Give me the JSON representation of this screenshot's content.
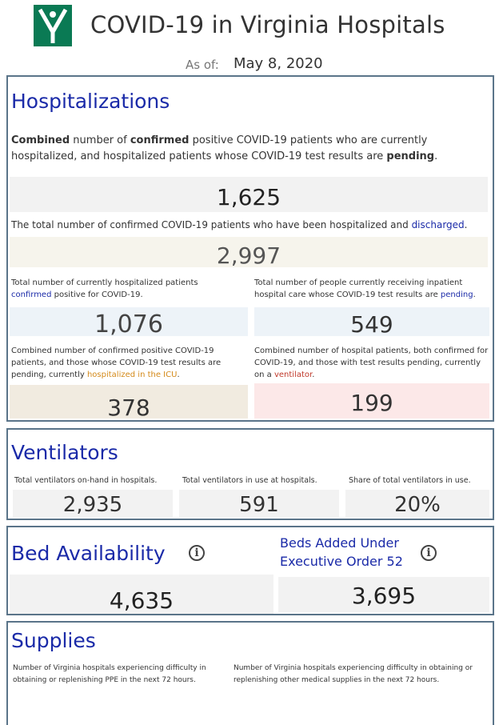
{
  "header": {
    "title": "COVID-19 in Virginia Hospitals",
    "as_of_label": "As of:",
    "as_of_date": "May 8, 2020",
    "logo_icon": "vhhca-logo-icon"
  },
  "hospitalizations": {
    "heading": "Hospitalizations",
    "combined_desc": {
      "w1": "Combined",
      "t1": " number of ",
      "w2": "confirmed",
      "t2": " positive COVID-19 patients who are currently hospitalized, and hospitalized patients whose COVID-19 test results are ",
      "w3": "pending",
      "t3": "."
    },
    "combined_value": "1,625",
    "discharged_desc": {
      "t1": "The total number of confirmed COVID-19 patients who have been hospitalized and ",
      "link": "discharged",
      "t2": "."
    },
    "discharged_value": "2,997",
    "confirmed_desc": {
      "t1": "Total number of currently hospitalized patients ",
      "link": "confirmed",
      "t2": " positive for COVID-19."
    },
    "confirmed_value": "1,076",
    "pending_desc": {
      "t1": "Total number of people currently receiving inpatient hospital care whose COVID-19 test results are ",
      "link": "pending",
      "t2": "."
    },
    "pending_value": "549",
    "icu_desc": {
      "t1": "Combined number of confirmed positive COVID-19 patients, and those whose COVID-19 test results are pending, currently ",
      "link": "hospitalized in the ICU",
      "t2": "."
    },
    "icu_value": "378",
    "vent_desc": {
      "t1": "Combined number of hospital patients, both confirmed for COVID-19, and those with test results pending, currently on a ",
      "link": "ventilator",
      "t2": "."
    },
    "vent_value": "199"
  },
  "ventilators": {
    "heading": "Ventilators",
    "onhand_label": "Total ventilators on-hand in hospitals.",
    "onhand_value": "2,935",
    "inuse_label": "Total ventilators in use at hospitals.",
    "inuse_value": "591",
    "share_label": "Share of total ventilators in use.",
    "share_value": "20%"
  },
  "beds": {
    "heading": "Bed Availability",
    "value": "4,635",
    "added_heading": "Beds Added Under Executive Order 52",
    "added_value": "3,695"
  },
  "supplies": {
    "heading": "Supplies",
    "ppe_desc": "Number of Virginia hospitals experiencing difficulty in obtaining or replenishing PPE in the next 72 hours.",
    "other_desc": "Number of Virginia hospitals experiencing difficulty in obtaining or replenishing other medical supplies in the next 72 hours."
  },
  "colors": {
    "brand_green": "#0a7a54",
    "heading_blue": "#1a2aa8",
    "panel_border": "#5a7489",
    "icu_orange": "#d48a1a",
    "ventilator_red": "#c0392b"
  }
}
